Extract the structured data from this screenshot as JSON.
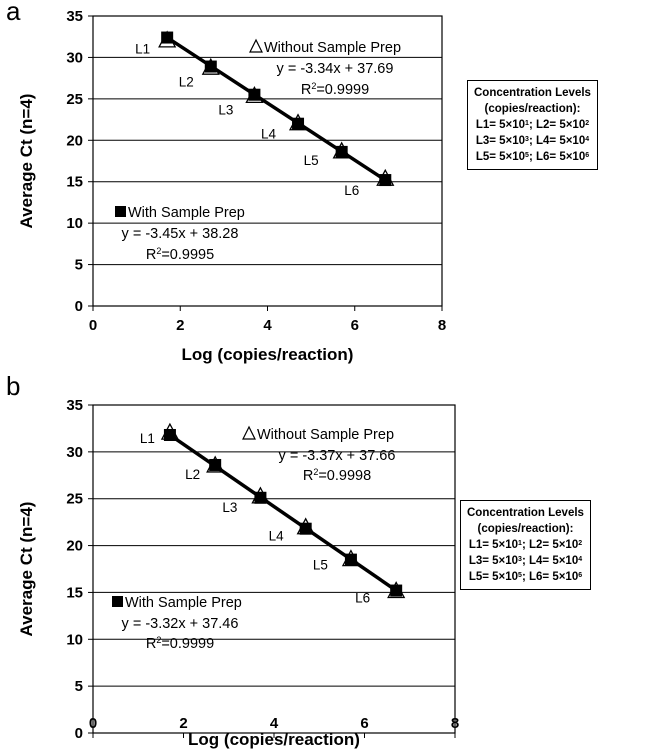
{
  "chart_data": [
    {
      "panel": "a",
      "type": "scatter",
      "xlabel": "Log (copies/reaction)",
      "ylabel": "Average Ct (n=4)",
      "xlim": [
        0,
        8
      ],
      "ylim": [
        0,
        35
      ],
      "xticks": [
        0,
        2,
        4,
        6,
        8
      ],
      "yticks": [
        0,
        5,
        10,
        15,
        20,
        25,
        30,
        35
      ],
      "grid": "horizontal",
      "point_labels": [
        "L1",
        "L2",
        "L3",
        "L4",
        "L5",
        "L6"
      ],
      "series": [
        {
          "name": "With Sample Prep",
          "marker": "filled-square",
          "x": [
            1.7,
            2.7,
            3.7,
            4.7,
            5.7,
            6.7
          ],
          "y": [
            32.4,
            28.9,
            25.5,
            22.0,
            18.6,
            15.2
          ],
          "equation": "y = -3.45x + 38.28",
          "r2_label": "R",
          "r2_value": "=0.9995"
        },
        {
          "name": "Without Sample Prep",
          "marker": "open-triangle",
          "x": [
            1.7,
            2.7,
            3.7,
            4.7,
            5.7,
            6.7
          ],
          "y": [
            32.0,
            28.7,
            25.3,
            22.0,
            18.6,
            15.3
          ],
          "equation": "y = -3.34x + 37.69",
          "r2_label": "R",
          "r2_value": "=0.9999"
        }
      ]
    },
    {
      "panel": "b",
      "type": "scatter",
      "xlabel": "Log (copies/reaction)",
      "ylabel": "Average Ct (n=4)",
      "xlim": [
        0,
        8
      ],
      "ylim": [
        0,
        35
      ],
      "xticks": [
        0,
        2,
        4,
        6,
        8
      ],
      "yticks": [
        0,
        5,
        10,
        15,
        20,
        25,
        30,
        35
      ],
      "grid": "horizontal",
      "point_labels": [
        "L1",
        "L2",
        "L3",
        "L4",
        "L5",
        "L6"
      ],
      "series": [
        {
          "name": "With Sample Prep",
          "marker": "filled-square",
          "x": [
            1.7,
            2.7,
            3.7,
            4.7,
            5.7,
            6.7
          ],
          "y": [
            31.8,
            28.6,
            25.1,
            21.8,
            18.5,
            15.2
          ],
          "equation": "y = -3.32x + 37.46",
          "r2_label": "R",
          "r2_value": "=0.9999"
        },
        {
          "name": "Without Sample Prep",
          "marker": "open-triangle",
          "x": [
            1.7,
            2.7,
            3.7,
            4.7,
            5.7,
            6.7
          ],
          "y": [
            32.0,
            28.5,
            25.2,
            21.9,
            18.5,
            15.1
          ],
          "equation": "y = -3.37x + 37.66",
          "r2_label": "R",
          "r2_value": "=0.9998"
        }
      ]
    }
  ],
  "panels": [
    {
      "letter": "a"
    },
    {
      "letter": "b"
    }
  ],
  "concentration_legend": {
    "title_line1": "Concentration Levels",
    "title_line2": "(copies/reaction):",
    "rows": [
      {
        "a": "L1= 5×10",
        "a_exp": "1",
        "sep": "; ",
        "b": "L2= 5×10",
        "b_exp": "2"
      },
      {
        "a": "L3= 5×10",
        "a_exp": "3",
        "sep": "; ",
        "b": "L4= 5×10",
        "b_exp": "4"
      },
      {
        "a": "L5= 5×10",
        "a_exp": "5",
        "sep": "; ",
        "b": "L6= 5×10",
        "b_exp": "6"
      }
    ]
  },
  "r2_superscript": "2",
  "colors": {
    "line": "#000000",
    "grid": "#000000",
    "marker": "#000000"
  }
}
